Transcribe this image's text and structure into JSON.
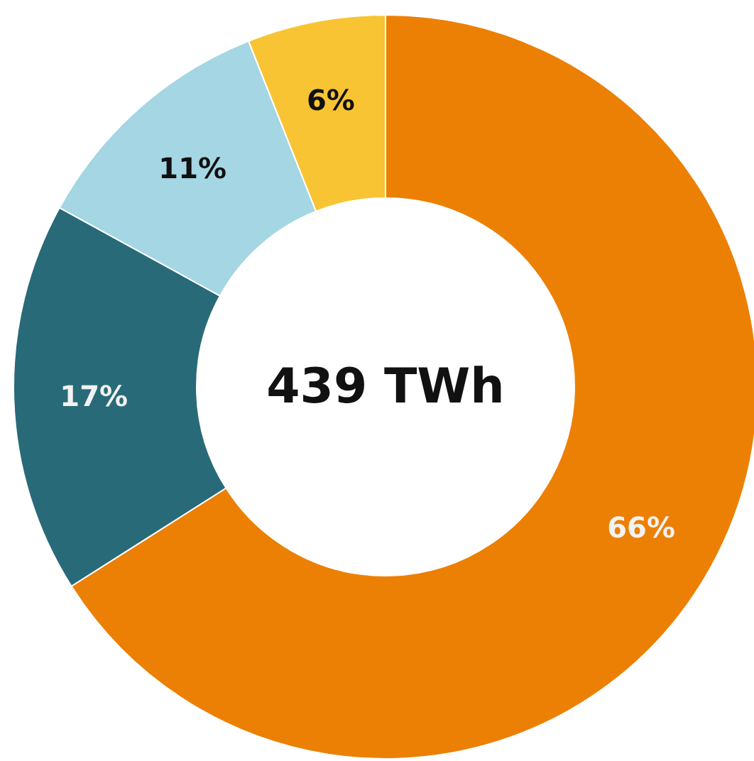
{
  "chart_data": {
    "type": "donut",
    "categories": [
      null,
      null,
      null,
      null
    ],
    "values": [
      66,
      17,
      11,
      6
    ],
    "colors": [
      "#ec8004",
      "#286a78",
      "#a4d6e4",
      "#f8c434"
    ],
    "value_labels": [
      "66%",
      "17%",
      "11%",
      "6%"
    ],
    "annotations": [
      "439 TWh"
    ]
  }
}
